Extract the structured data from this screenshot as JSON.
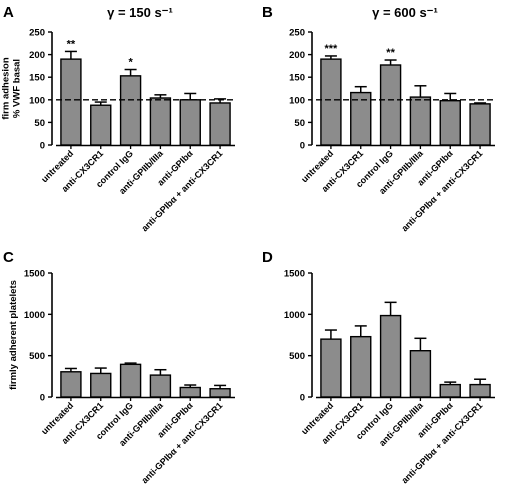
{
  "chart_data": [
    {
      "panel": "A",
      "type": "bar",
      "title": "γ = 150 s⁻¹",
      "ylabel_lines": [
        "firm adhesion",
        "% VWF basal"
      ],
      "categories": [
        "untreated",
        "anti-CX3CR1",
        "control IgG",
        "anti-GPIIb/IIIa",
        "anti-GPIbα",
        "anti-GPIbα + anti-CX3CR1"
      ],
      "values": [
        190,
        88,
        153,
        104,
        100,
        93
      ],
      "errors": [
        17,
        7,
        14,
        7,
        14,
        9
      ],
      "significance": [
        "**",
        "",
        "*",
        "",
        "",
        ""
      ],
      "yticks": [
        0,
        50,
        100,
        150,
        200,
        250
      ],
      "ylim": [
        0,
        250
      ],
      "reference_line": 100
    },
    {
      "panel": "B",
      "type": "bar",
      "title": "γ = 600 s⁻¹",
      "ylabel_lines": [],
      "categories": [
        "untreated",
        "anti-CX3CR1",
        "control IgG",
        "anti-GPIIb/IIIa",
        "anti-GPIbα",
        "anti-GPIbα + anti-CX3CR1"
      ],
      "values": [
        190,
        116,
        177,
        106,
        98,
        91
      ],
      "errors": [
        7,
        13,
        11,
        25,
        16,
        2
      ],
      "significance": [
        "***",
        "",
        "**",
        "",
        "",
        ""
      ],
      "yticks": [
        0,
        50,
        100,
        150,
        200,
        250
      ],
      "ylim": [
        0,
        250
      ],
      "reference_line": 100
    },
    {
      "panel": "C",
      "type": "bar",
      "title": "",
      "ylabel_lines": [
        "firmly adherent platelets"
      ],
      "categories": [
        "untreated",
        "anti-CX3CR1",
        "control IgG",
        "anti-GPIIb/IIIa",
        "anti-GPIbα",
        "anti-GPIbα + anti-CX3CR1"
      ],
      "values": [
        305,
        285,
        395,
        265,
        115,
        100
      ],
      "errors": [
        40,
        65,
        15,
        65,
        30,
        40
      ],
      "significance": [
        "",
        "",
        "",
        "",
        "",
        ""
      ],
      "yticks": [
        0,
        500,
        1000,
        1500
      ],
      "ylim": [
        0,
        1500
      ],
      "reference_line": null
    },
    {
      "panel": "D",
      "type": "bar",
      "title": "",
      "ylabel_lines": [],
      "categories": [
        "untreated",
        "anti-CX3CR1",
        "control IgG",
        "anti-GPIIb/IIIa",
        "anti-GPIbα",
        "anti-GPIbα + anti-CX3CR1"
      ],
      "values": [
        700,
        730,
        985,
        560,
        150,
        150
      ],
      "errors": [
        110,
        130,
        160,
        150,
        30,
        65
      ],
      "significance": [
        "",
        "",
        "",
        "",
        "",
        ""
      ],
      "yticks": [
        0,
        500,
        1000,
        1500
      ],
      "ylim": [
        0,
        1500
      ],
      "reference_line": null
    }
  ],
  "colors": {
    "bar_fill": "#8c8c8c",
    "bar_stroke": "#000000",
    "axis": "#000000",
    "text": "#000000"
  }
}
